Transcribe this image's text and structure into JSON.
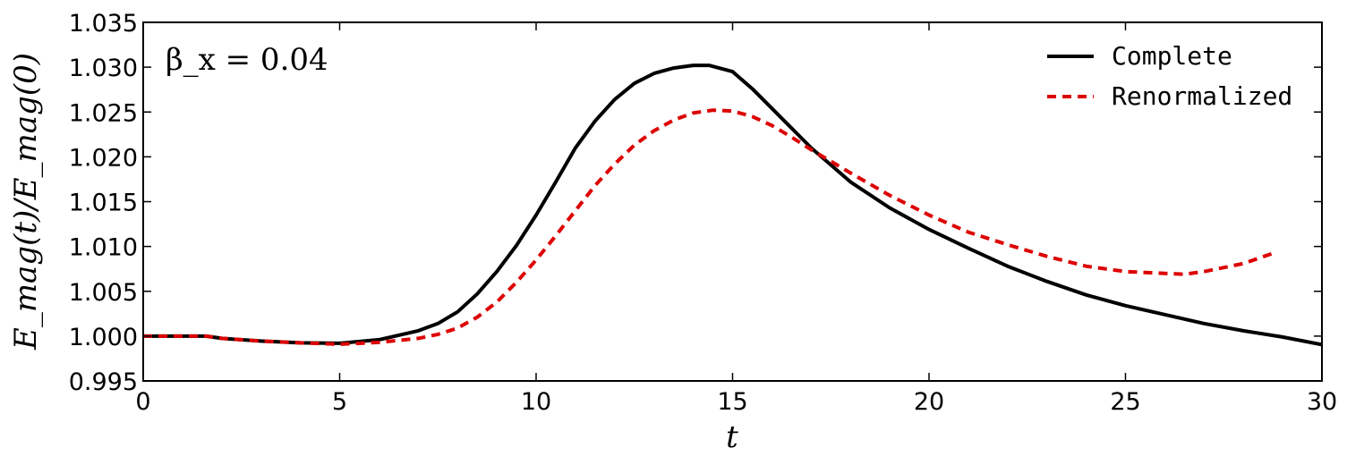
{
  "chart_data": {
    "type": "line",
    "xlabel": "t",
    "ylabel": "E_mag(t)/E_mag(0)",
    "xlim": [
      0,
      30
    ],
    "ylim": [
      0.995,
      1.035
    ],
    "xticks": [
      0,
      5,
      10,
      15,
      20,
      25,
      30
    ],
    "xtick_labels": [
      "0",
      "5",
      "10",
      "15",
      "20",
      "25",
      "30"
    ],
    "yticks": [
      0.995,
      1.0,
      1.005,
      1.01,
      1.015,
      1.02,
      1.025,
      1.03,
      1.035
    ],
    "ytick_labels": [
      "0.995",
      "1.000",
      "1.005",
      "1.010",
      "1.015",
      "1.020",
      "1.025",
      "1.030",
      "1.035"
    ],
    "annotation": "β_x = 0.04",
    "grid": false,
    "legend_position": "top-right",
    "series": [
      {
        "name": "Complete",
        "color": "#000000",
        "style": "solid",
        "x": [
          0,
          1,
          1.6,
          2,
          3,
          4,
          5,
          6,
          7,
          7.5,
          8,
          8.5,
          9,
          9.5,
          10,
          10.5,
          11,
          11.5,
          12,
          12.5,
          13,
          13.5,
          14,
          14.4,
          15,
          15.5,
          16,
          16.5,
          17,
          18,
          19,
          20,
          21,
          22,
          23,
          24,
          25,
          26,
          27,
          28,
          29,
          30
        ],
        "y": [
          1.0,
          1.0,
          1.0,
          0.99975,
          0.99945,
          0.99925,
          0.9992,
          0.9996,
          1.0006,
          1.0014,
          1.0027,
          1.0047,
          1.0072,
          1.0101,
          1.0135,
          1.0172,
          1.021,
          1.024,
          1.0264,
          1.0282,
          1.0293,
          1.0299,
          1.0302,
          1.0302,
          1.0295,
          1.0276,
          1.0254,
          1.0232,
          1.021,
          1.0172,
          1.0143,
          1.0119,
          1.0098,
          1.0078,
          1.0061,
          1.0046,
          1.0034,
          1.0024,
          1.0014,
          1.0006,
          0.9999,
          0.99905
        ]
      },
      {
        "name": "Renormalized",
        "color": "#dd0000",
        "style": "dashed",
        "x": [
          0,
          1,
          1.6,
          2,
          3,
          4,
          5,
          6,
          7,
          7.5,
          8,
          8.5,
          9,
          9.5,
          10,
          10.5,
          11,
          11.5,
          12,
          12.5,
          13,
          13.5,
          14,
          14.5,
          15,
          15.5,
          16,
          16.5,
          17,
          17.5,
          18,
          19,
          20,
          21,
          22,
          23,
          24,
          25,
          26,
          26.5,
          27,
          28,
          28.8
        ],
        "y": [
          1.0,
          1.0,
          1.0,
          0.99975,
          0.99945,
          0.99925,
          0.9991,
          0.9993,
          0.99975,
          1.0002,
          1.0009,
          1.0021,
          1.0038,
          1.006,
          1.0085,
          1.0112,
          1.014,
          1.0168,
          1.0192,
          1.0213,
          1.0229,
          1.0241,
          1.0249,
          1.0252,
          1.0251,
          1.0245,
          1.0235,
          1.0222,
          1.0208,
          1.0195,
          1.0182,
          1.0157,
          1.0135,
          1.0116,
          1.0102,
          1.0089,
          1.0078,
          1.0072,
          1.007,
          1.0069,
          1.0072,
          1.0081,
          1.0093
        ]
      }
    ]
  }
}
